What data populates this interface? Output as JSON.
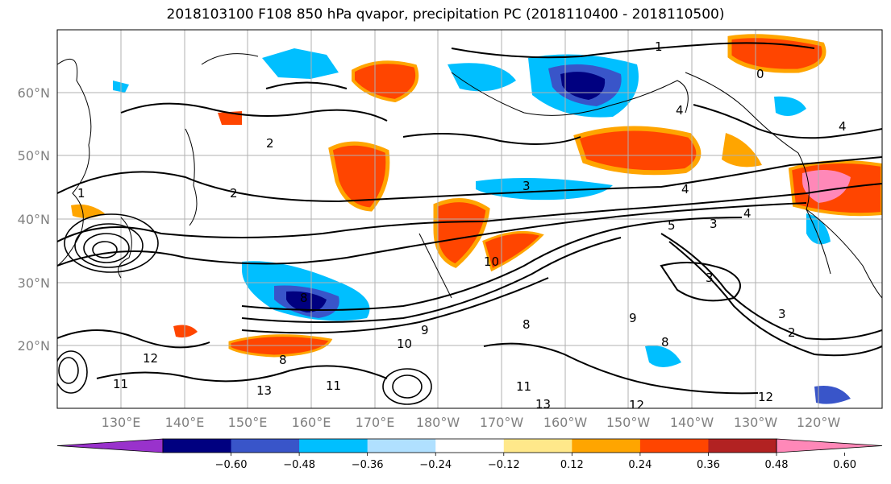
{
  "title": "2018103100 F108 850 hPa qvapor, precipitation PC (2018110400 - 2018110500)",
  "map": {
    "lat_labels": [
      "60°N",
      "50°N",
      "40°N",
      "30°N",
      "20°N"
    ],
    "lon_labels": [
      "130°E",
      "140°E",
      "150°E",
      "160°E",
      "170°E",
      "180°W",
      "170°W",
      "160°W",
      "150°W",
      "140°W",
      "130°W",
      "120°W"
    ],
    "contour_labels": [
      "1",
      "0",
      "4",
      "4",
      "2",
      "2",
      "1",
      "3",
      "4",
      "5",
      "3",
      "4",
      "3",
      "3",
      "2",
      "8",
      "10",
      "9",
      "8",
      "9",
      "8",
      "12",
      "11",
      "13",
      "11",
      "12",
      "13",
      "11",
      "12",
      "8",
      "10"
    ]
  },
  "colorbar": {
    "ticks": [
      "−0.60",
      "−0.48",
      "−0.36",
      "−0.24",
      "−0.12",
      "0.12",
      "0.24",
      "0.36",
      "0.48",
      "0.60"
    ],
    "colors": [
      "#9932cc",
      "#000080",
      "#3955c9",
      "#00bfff",
      "#b0e0ff",
      "#ffffff",
      "#ffe88a",
      "#ffa500",
      "#ff4500",
      "#b22222",
      "#ff88b8"
    ]
  }
}
